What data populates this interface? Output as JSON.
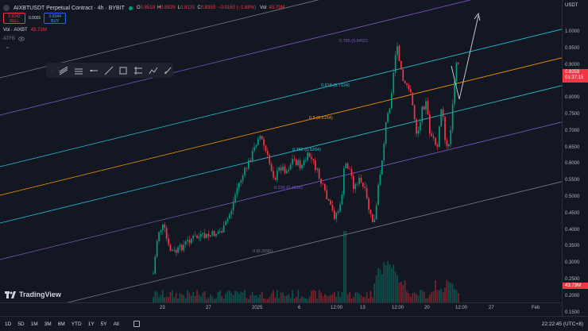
{
  "header": {
    "title": "AIXBTUSDT Perpetual Contract · 4h · BYBIT",
    "ohlc": [
      {
        "k": "O",
        "v": "0.8519"
      },
      {
        "k": "H",
        "v": "0.8829"
      },
      {
        "k": "L",
        "v": "0.8131"
      },
      {
        "k": "C",
        "v": "0.8359"
      },
      {
        "k": "",
        "v": "−0.0160 (−1.88%)"
      }
    ],
    "vol_label": "Vol",
    "vol_value": "43.73M"
  },
  "trade": {
    "sell_price": "0.8343",
    "sell_label": "SELL",
    "spread": "0.0001",
    "buy_price": "0.8344",
    "buy_label": "BUY"
  },
  "indicators": {
    "vol_name": "Vol · AIXBT",
    "vol_value": "43.73M",
    "atr_name": "ATFB"
  },
  "toolbar": {
    "icons": [
      "grip-icon",
      "fib-channel-icon",
      "parallel-channel-icon",
      "horizontal-ray-icon",
      "trend-line-icon",
      "rectangle-icon",
      "position-icon",
      "path-icon",
      "brush-icon"
    ]
  },
  "fib_levels": [
    {
      "label": "0.786 (0.8492)",
      "color": "#7e57c2"
    },
    {
      "label": "0.618 (0.7124)",
      "color": "#26c6da"
    },
    {
      "label": "0.5 (0.6164)",
      "color": "#ff9800"
    },
    {
      "label": "0.382 (0.5204)",
      "color": "#26c6da"
    },
    {
      "label": "0.236 (0.4016)",
      "color": "#7e57c2"
    },
    {
      "label": "0 (0.2095)",
      "color": "#787b86"
    }
  ],
  "price_axis": {
    "currency": "USDT",
    "ticks": [
      "1.0000",
      "0.9500",
      "0.9000",
      "0.8500",
      "0.8000",
      "0.7500",
      "0.7000",
      "0.6500",
      "0.6000",
      "0.5500",
      "0.5000",
      "0.4500",
      "0.4000",
      "0.3500",
      "0.3000",
      "0.2500",
      "0.2000",
      "0.1500"
    ],
    "last_price": "0.8359",
    "countdown": "01:37:15",
    "last_volume": "43.73M"
  },
  "time_axis": {
    "ticks": [
      "23",
      "27",
      "2025",
      "6",
      "12:00",
      "13",
      "12:00",
      "20",
      "12:00",
      "27",
      "Feb"
    ]
  },
  "bottom": {
    "ranges": [
      "1D",
      "5D",
      "1M",
      "3M",
      "6M",
      "YTD",
      "1Y",
      "5Y",
      "All"
    ],
    "clock": "22:22:45 (UTC+8)"
  },
  "branding": {
    "logo_text": "TradingView"
  },
  "colors": {
    "up": "#089981",
    "down": "#f23645",
    "bg": "#131722"
  }
}
